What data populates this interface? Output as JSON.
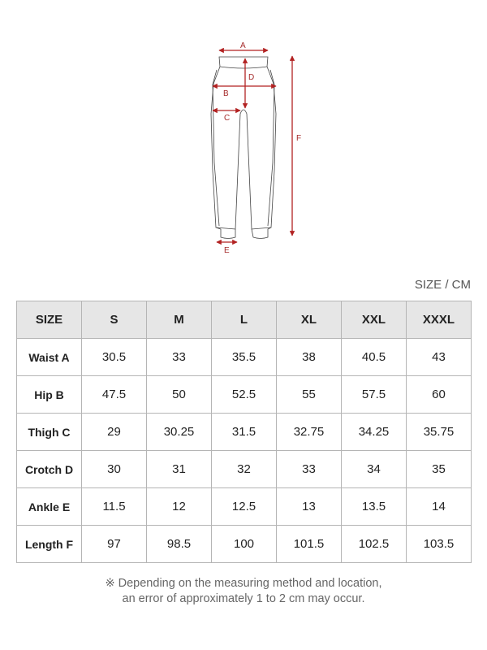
{
  "diagram": {
    "labels": {
      "a": "A",
      "b": "B",
      "c": "C",
      "d": "D",
      "e": "E",
      "f": "F"
    },
    "accent_color": "#b22222"
  },
  "unit_label": "SIZE / CM",
  "table": {
    "headers": [
      "SIZE",
      "S",
      "M",
      "L",
      "XL",
      "XXL",
      "XXXL"
    ],
    "rows": [
      {
        "label": "Waist A",
        "values": [
          "30.5",
          "33",
          "35.5",
          "38",
          "40.5",
          "43"
        ]
      },
      {
        "label": "Hip B",
        "values": [
          "47.5",
          "50",
          "52.5",
          "55",
          "57.5",
          "60"
        ]
      },
      {
        "label": "Thigh C",
        "values": [
          "29",
          "30.25",
          "31.5",
          "32.75",
          "34.25",
          "35.75"
        ]
      },
      {
        "label": "Crotch D",
        "values": [
          "30",
          "31",
          "32",
          "33",
          "34",
          "35"
        ]
      },
      {
        "label": "Ankle E",
        "values": [
          "11.5",
          "12",
          "12.5",
          "13",
          "13.5",
          "14"
        ]
      },
      {
        "label": "Length F",
        "values": [
          "97",
          "98.5",
          "100",
          "101.5",
          "102.5",
          "103.5"
        ]
      }
    ]
  },
  "note": {
    "line1": "※ Depending on the measuring method and location,",
    "line2": "an error of approximately 1 to 2 cm may occur."
  }
}
